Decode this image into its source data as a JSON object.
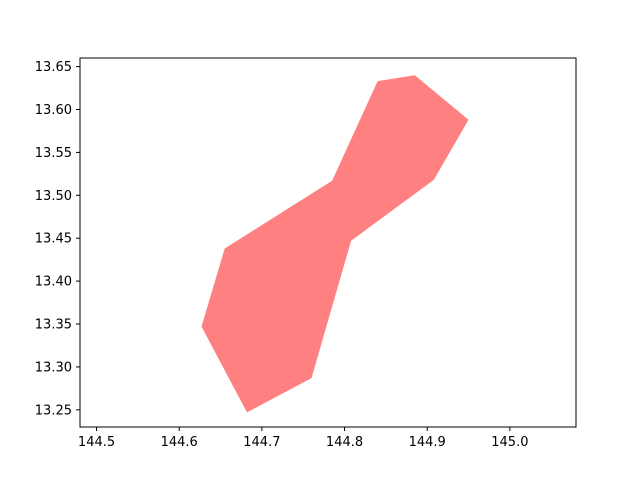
{
  "chart_data": {
    "type": "area",
    "title": "",
    "xlabel": "",
    "ylabel": "",
    "xlim": [
      144.48,
      145.08
    ],
    "ylim": [
      13.23,
      13.66
    ],
    "grid": false,
    "fill_color": "#ff8080",
    "series": [
      {
        "polygon": [
          [
            144.655,
            13.438
          ],
          [
            144.785,
            13.517
          ],
          [
            144.84,
            13.633
          ],
          [
            144.885,
            13.64
          ],
          [
            144.95,
            13.588
          ],
          [
            144.908,
            13.518
          ],
          [
            144.808,
            13.447
          ],
          [
            144.76,
            13.287
          ],
          [
            144.682,
            13.247
          ],
          [
            144.627,
            13.347
          ]
        ]
      }
    ],
    "x_ticks": [
      {
        "value": 144.5,
        "label": "144.5"
      },
      {
        "value": 144.6,
        "label": "144.6"
      },
      {
        "value": 144.7,
        "label": "144.7"
      },
      {
        "value": 144.8,
        "label": "144.8"
      },
      {
        "value": 144.9,
        "label": "144.9"
      },
      {
        "value": 145.0,
        "label": "145.0"
      }
    ],
    "y_ticks": [
      {
        "value": 13.25,
        "label": "13.25"
      },
      {
        "value": 13.3,
        "label": "13.30"
      },
      {
        "value": 13.35,
        "label": "13.35"
      },
      {
        "value": 13.4,
        "label": "13.40"
      },
      {
        "value": 13.45,
        "label": "13.45"
      },
      {
        "value": 13.5,
        "label": "13.50"
      },
      {
        "value": 13.55,
        "label": "13.55"
      },
      {
        "value": 13.6,
        "label": "13.60"
      },
      {
        "value": 13.65,
        "label": "13.65"
      }
    ]
  }
}
